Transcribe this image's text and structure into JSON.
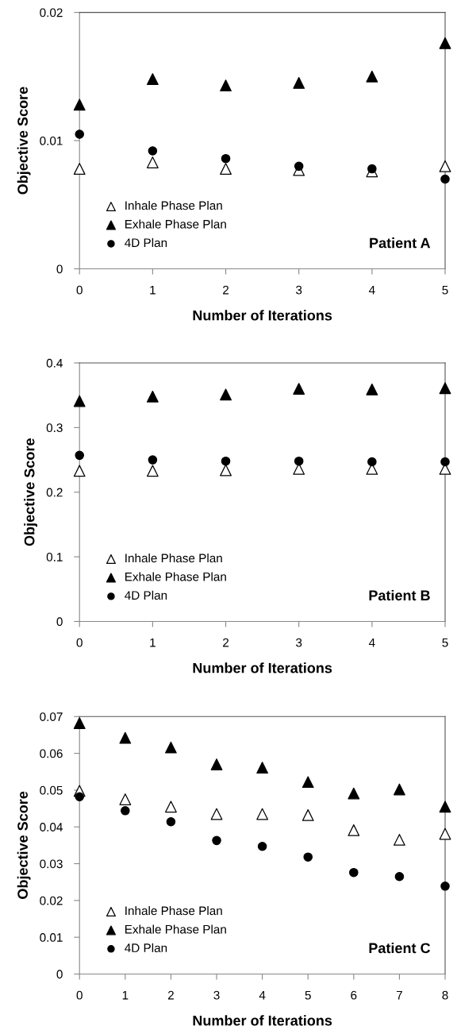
{
  "chart_data": [
    {
      "type": "scatter",
      "xlabel": "Number of Iterations",
      "ylabel": "Objective Score",
      "annotations": [
        "Patient A"
      ],
      "x": [
        0,
        1,
        2,
        3,
        4,
        5
      ],
      "xlim": [
        0,
        5
      ],
      "xticks": [
        0,
        1,
        2,
        3,
        4,
        5
      ],
      "ylim": [
        0,
        0.02
      ],
      "yticks": [
        0,
        0.01,
        0.02
      ],
      "grid": false,
      "legend": "bottom left",
      "series": [
        {
          "name": "Inhale Phase Plan",
          "color": "#ffffff",
          "marker": "triangle",
          "values": [
            0.0078,
            0.0083,
            0.0078,
            0.0077,
            0.0076,
            0.008
          ]
        },
        {
          "name": "Exhale Phase Plan",
          "color": "#000000",
          "marker": "triangle",
          "values": [
            0.0128,
            0.0148,
            0.0143,
            0.0145,
            0.015,
            0.0176
          ]
        },
        {
          "name": "4D Plan",
          "color": "#000000",
          "marker": "circle",
          "values": [
            0.0105,
            0.0092,
            0.0086,
            0.008,
            0.0078,
            0.007
          ]
        }
      ]
    },
    {
      "type": "scatter",
      "xlabel": "Number of Iterations",
      "ylabel": "Objective Score",
      "annotations": [
        "Patient B"
      ],
      "x": [
        0,
        1,
        2,
        3,
        4,
        5
      ],
      "xlim": [
        0,
        5
      ],
      "xticks": [
        0,
        1,
        2,
        3,
        4,
        5
      ],
      "ylim": [
        0,
        0.4
      ],
      "yticks": [
        0,
        0.1,
        0.2,
        0.3,
        0.4
      ],
      "grid": false,
      "legend": "bottom left",
      "series": [
        {
          "name": "Inhale Phase Plan",
          "color": "#ffffff",
          "marker": "triangle",
          "values": [
            0.233,
            0.233,
            0.234,
            0.236,
            0.236,
            0.236
          ]
        },
        {
          "name": "Exhale Phase Plan",
          "color": "#000000",
          "marker": "triangle",
          "values": [
            0.341,
            0.348,
            0.351,
            0.36,
            0.359,
            0.361
          ]
        },
        {
          "name": "4D Plan",
          "color": "#000000",
          "marker": "circle",
          "values": [
            0.257,
            0.25,
            0.248,
            0.248,
            0.247,
            0.247
          ]
        }
      ]
    },
    {
      "type": "scatter",
      "xlabel": "Number of Iterations",
      "ylabel": "Objective Score",
      "annotations": [
        "Patient C"
      ],
      "x": [
        0,
        1,
        2,
        3,
        4,
        5,
        6,
        7,
        8
      ],
      "xlim": [
        0,
        8
      ],
      "xticks": [
        0,
        1,
        2,
        3,
        4,
        5,
        6,
        7,
        8
      ],
      "ylim": [
        0,
        0.07
      ],
      "yticks": [
        0,
        0.01,
        0.02,
        0.03,
        0.04,
        0.05,
        0.06,
        0.07
      ],
      "grid": false,
      "legend": "bottom left",
      "series": [
        {
          "name": "Inhale Phase Plan",
          "color": "#ffffff",
          "marker": "triangle",
          "values": [
            0.0498,
            0.0475,
            0.0455,
            0.0435,
            0.0435,
            0.0432,
            0.0391,
            0.0365,
            0.0381
          ]
        },
        {
          "name": "Exhale Phase Plan",
          "color": "#000000",
          "marker": "triangle",
          "values": [
            0.0682,
            0.0642,
            0.0616,
            0.057,
            0.0561,
            0.0522,
            0.0491,
            0.0502,
            0.0455
          ]
        },
        {
          "name": "4D Plan",
          "color": "#000000",
          "marker": "circle",
          "values": [
            0.0482,
            0.0444,
            0.0414,
            0.0363,
            0.0347,
            0.0318,
            0.0276,
            0.0265,
            0.0239
          ]
        }
      ]
    }
  ]
}
